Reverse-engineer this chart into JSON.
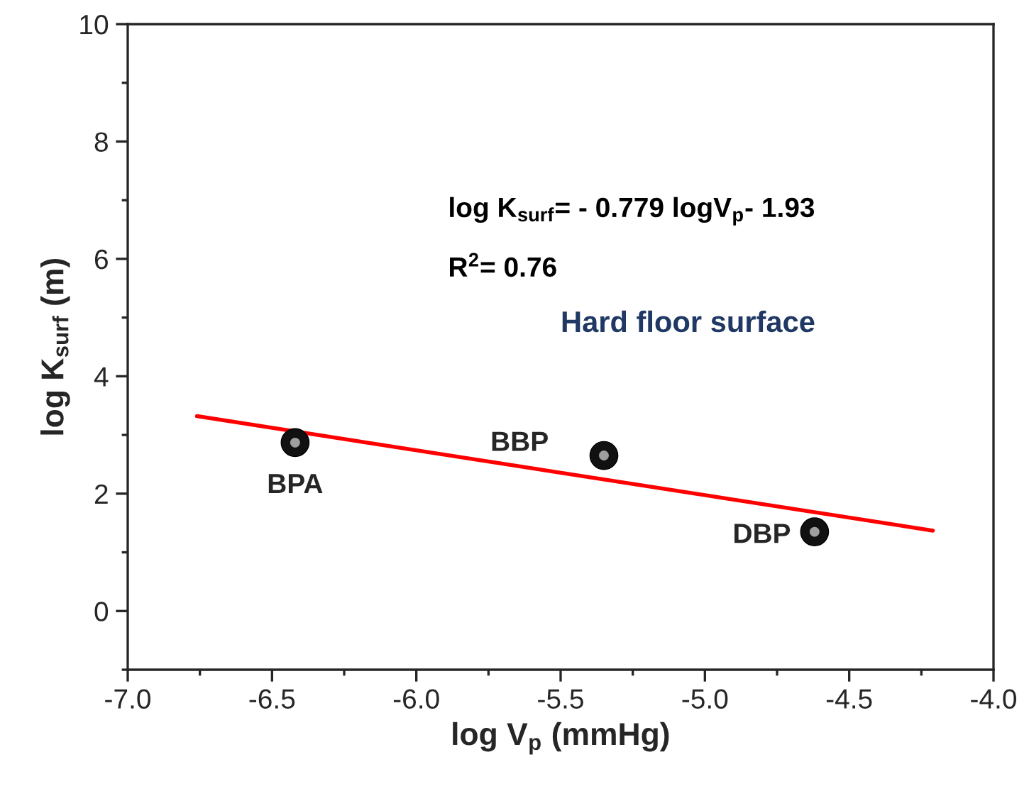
{
  "chart_data": {
    "type": "scatter",
    "xlabel": "log V$_{p}$ (mmHg)",
    "ylabel": "log K$_{surf}$ (m)",
    "xlim": [
      -7.0,
      -4.0
    ],
    "xticks": [
      {
        "value": -7.0,
        "label": "-7.0"
      },
      {
        "value": -6.5,
        "label": "-6.5"
      },
      {
        "value": -6.0,
        "label": "-6.0"
      },
      {
        "value": -5.5,
        "label": "-5.5"
      },
      {
        "value": -5.0,
        "label": "-5.0"
      },
      {
        "value": -4.5,
        "label": "-4.5"
      },
      {
        "value": -4.0,
        "label": "-4.0"
      }
    ],
    "ylim": [
      -1,
      10
    ],
    "yticks": [
      0,
      2,
      4,
      6,
      8,
      10
    ],
    "marker": "circle",
    "grid": false,
    "legend": false,
    "series": [
      {
        "color": "#111111",
        "x": [
          -6.42,
          -5.35,
          -4.62
        ],
        "values": [
          2.87,
          2.65,
          1.35
        ]
      },
      {
        "type": "line",
        "color": "#ff0000",
        "x": [
          -6.76,
          -4.21
        ],
        "values": [
          3.32,
          1.37
        ],
        "marker": "none"
      }
    ],
    "annotations": [
      {
        "text": "BPA",
        "x": -6.42,
        "y": 2.87
      },
      {
        "text": "BBP",
        "x": -5.35,
        "y": 2.65
      },
      {
        "text": "DBP",
        "x": -4.62,
        "y": 1.35
      },
      "log K$_{surf}$= - 0.779 logV$_{p}$- 1.93",
      "R$^{2}$= 0.76",
      "Hard floor surface"
    ]
  }
}
